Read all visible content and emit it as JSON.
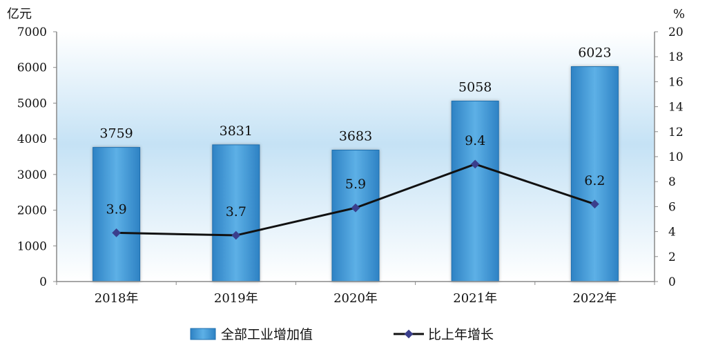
{
  "chart_data": {
    "type": "bar",
    "categories": [
      "2018年",
      "2019年",
      "2020年",
      "2021年",
      "2022年"
    ],
    "series": [
      {
        "name": "全部工业增加值",
        "type": "bar",
        "axis": "left",
        "values": [
          3759,
          3831,
          3683,
          5058,
          6023
        ]
      },
      {
        "name": "比上年增长",
        "type": "line",
        "axis": "right",
        "values": [
          3.9,
          3.7,
          5.9,
          9.4,
          6.2
        ]
      }
    ],
    "left_axis": {
      "unit": "亿元",
      "ylim": [
        0,
        7000
      ],
      "ticks": [
        0,
        1000,
        2000,
        3000,
        4000,
        5000,
        6000,
        7000
      ]
    },
    "right_axis": {
      "unit": "%",
      "ylim": [
        0,
        20
      ],
      "ticks": [
        0,
        2,
        4,
        6,
        8,
        10,
        12,
        14,
        16,
        18,
        20
      ]
    },
    "legend_position": "bottom-center",
    "colors": {
      "bar": "#4a9fd8",
      "bar_edge": "#1f6fae",
      "line": "#111111",
      "marker": "#3a3e8c",
      "plot_bg_top": "#ffffff",
      "plot_bg_mid": "#c5e2f5"
    }
  }
}
